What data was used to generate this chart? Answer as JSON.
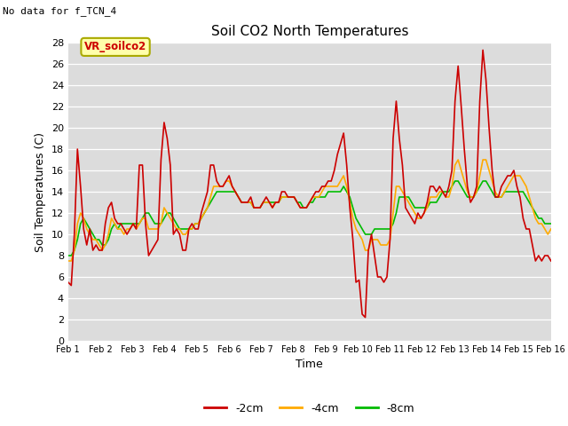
{
  "title": "Soil CO2 North Temperatures",
  "subtitle": "No data for f_TCN_4",
  "xlabel": "Time",
  "ylabel": "Soil Temperatures (C)",
  "legend_label": "VR_soilco2",
  "xlim": [
    0,
    15
  ],
  "ylim": [
    0,
    28
  ],
  "xtick_labels": [
    "Feb 1",
    "Feb 2",
    "Feb 3",
    "Feb 4",
    "Feb 5",
    "Feb 6",
    "Feb 7",
    "Feb 8",
    "Feb 9",
    "Feb 10",
    "Feb 11",
    "Feb 12",
    "Feb 13",
    "Feb 14",
    "Feb 15",
    "Feb 16"
  ],
  "ytick_values": [
    0,
    2,
    4,
    6,
    8,
    10,
    12,
    14,
    16,
    18,
    20,
    22,
    24,
    26,
    28
  ],
  "color_2cm": "#cc0000",
  "color_4cm": "#ffaa00",
  "color_8cm": "#00bb00",
  "bg_color": "#dcdcdc",
  "line_width": 1.2,
  "t_2cm": [
    5.5,
    5.2,
    10.0,
    18.0,
    14.5,
    10.5,
    9.0,
    10.5,
    8.5,
    9.0,
    8.5,
    8.5,
    11.0,
    12.5,
    13.0,
    11.5,
    11.0,
    11.0,
    10.5,
    10.0,
    10.5,
    11.0,
    10.5,
    16.5,
    16.5,
    11.0,
    8.0,
    8.5,
    9.0,
    9.5,
    17.0,
    20.5,
    19.0,
    16.5,
    10.0,
    10.5,
    10.0,
    8.5,
    8.5,
    10.5,
    11.0,
    10.5,
    10.5,
    12.0,
    13.0,
    14.0,
    16.5,
    16.5,
    15.0,
    14.5,
    14.5,
    15.0,
    15.5,
    14.5,
    14.0,
    13.5,
    13.0,
    13.0,
    13.0,
    13.5,
    12.5,
    12.5,
    12.5,
    13.0,
    13.5,
    13.0,
    12.5,
    13.0,
    13.0,
    14.0,
    14.0,
    13.5,
    13.5,
    13.5,
    13.0,
    12.5,
    12.5,
    12.5,
    13.0,
    13.5,
    14.0,
    14.0,
    14.5,
    14.5,
    15.0,
    15.0,
    16.0,
    17.5,
    18.5,
    19.5,
    16.5,
    12.5,
    9.5,
    5.5,
    5.7,
    2.5,
    2.2,
    8.5,
    10.0,
    8.0,
    6.0,
    6.0,
    5.5,
    6.0,
    9.5,
    19.0,
    22.5,
    19.0,
    16.5,
    12.5,
    12.0,
    11.5,
    11.0,
    12.0,
    11.5,
    12.0,
    13.0,
    14.5,
    14.5,
    14.0,
    14.5,
    14.0,
    13.5,
    14.5,
    16.0,
    22.5,
    25.8,
    22.0,
    18.0,
    14.5,
    13.0,
    13.5,
    14.5,
    22.5,
    27.3,
    24.5,
    20.0,
    16.0,
    13.5,
    13.5,
    14.5,
    15.0,
    15.5,
    15.5,
    16.0,
    14.5,
    13.5,
    11.5,
    10.5,
    10.5,
    9.0,
    7.5,
    8.0,
    7.5,
    8.0,
    8.0,
    7.5
  ],
  "t_4cm": [
    7.5,
    7.5,
    8.5,
    11.0,
    12.0,
    11.5,
    10.5,
    10.0,
    9.5,
    9.5,
    9.0,
    8.5,
    9.0,
    10.0,
    11.5,
    11.0,
    10.5,
    10.5,
    10.0,
    10.5,
    10.5,
    11.0,
    10.5,
    11.0,
    11.5,
    11.5,
    10.5,
    10.5,
    10.5,
    10.5,
    11.0,
    12.5,
    12.0,
    11.5,
    11.0,
    10.5,
    10.5,
    10.0,
    10.0,
    10.5,
    10.5,
    11.0,
    11.0,
    11.5,
    12.0,
    12.5,
    13.5,
    14.5,
    14.5,
    14.5,
    14.5,
    15.0,
    15.0,
    14.5,
    14.0,
    13.5,
    13.0,
    13.0,
    13.0,
    13.0,
    12.5,
    12.5,
    12.5,
    13.0,
    13.0,
    13.0,
    12.5,
    13.0,
    13.0,
    13.5,
    13.5,
    13.5,
    13.5,
    13.5,
    13.0,
    12.5,
    12.5,
    12.5,
    13.0,
    13.5,
    13.5,
    13.5,
    14.0,
    14.5,
    14.5,
    14.5,
    14.5,
    14.5,
    15.0,
    15.5,
    14.5,
    13.0,
    11.5,
    10.5,
    10.0,
    9.5,
    8.5,
    8.5,
    9.5,
    9.5,
    9.5,
    9.0,
    9.0,
    9.0,
    9.5,
    12.0,
    14.5,
    14.5,
    14.0,
    13.5,
    13.0,
    12.5,
    12.0,
    11.5,
    11.5,
    12.0,
    12.5,
    13.5,
    13.5,
    13.5,
    14.0,
    14.0,
    13.5,
    13.5,
    14.5,
    16.5,
    17.0,
    16.0,
    15.0,
    14.0,
    13.5,
    13.5,
    14.0,
    15.5,
    17.0,
    17.0,
    16.0,
    15.0,
    14.0,
    13.5,
    13.5,
    14.0,
    14.5,
    15.0,
    15.5,
    15.5,
    15.5,
    15.0,
    14.5,
    13.5,
    12.5,
    11.5,
    11.0,
    11.0,
    10.5,
    10.0,
    10.5
  ],
  "t_8cm": [
    8.0,
    8.0,
    8.5,
    9.5,
    11.0,
    11.5,
    11.0,
    10.5,
    10.0,
    9.5,
    9.5,
    9.0,
    9.0,
    9.5,
    10.5,
    11.0,
    10.5,
    11.0,
    11.0,
    11.0,
    11.0,
    11.0,
    11.0,
    11.0,
    11.5,
    12.0,
    12.0,
    11.5,
    11.0,
    11.0,
    11.0,
    11.5,
    12.0,
    12.0,
    11.5,
    11.0,
    10.5,
    10.5,
    10.5,
    10.5,
    10.5,
    11.0,
    11.0,
    11.5,
    12.0,
    12.5,
    13.0,
    13.5,
    14.0,
    14.0,
    14.0,
    14.0,
    14.0,
    14.0,
    14.0,
    13.5,
    13.0,
    13.0,
    13.0,
    13.0,
    12.5,
    12.5,
    12.5,
    13.0,
    13.0,
    13.0,
    13.0,
    13.0,
    13.0,
    13.5,
    13.5,
    13.5,
    13.5,
    13.5,
    13.0,
    13.0,
    12.5,
    12.5,
    13.0,
    13.0,
    13.5,
    13.5,
    13.5,
    13.5,
    14.0,
    14.0,
    14.0,
    14.0,
    14.0,
    14.5,
    14.0,
    13.5,
    12.5,
    11.5,
    11.0,
    10.5,
    10.0,
    10.0,
    10.0,
    10.5,
    10.5,
    10.5,
    10.5,
    10.5,
    10.5,
    11.0,
    12.0,
    13.5,
    13.5,
    13.5,
    13.5,
    13.0,
    12.5,
    12.5,
    12.5,
    12.5,
    12.5,
    13.0,
    13.0,
    13.0,
    13.5,
    14.0,
    14.0,
    14.0,
    14.5,
    15.0,
    15.0,
    14.5,
    14.0,
    13.5,
    13.5,
    13.5,
    14.0,
    14.5,
    15.0,
    15.0,
    14.5,
    14.0,
    13.5,
    13.5,
    13.5,
    14.0,
    14.0,
    14.0,
    14.0,
    14.0,
    14.0,
    14.0,
    13.5,
    13.0,
    12.5,
    12.0,
    11.5,
    11.5,
    11.0,
    11.0,
    11.0
  ]
}
